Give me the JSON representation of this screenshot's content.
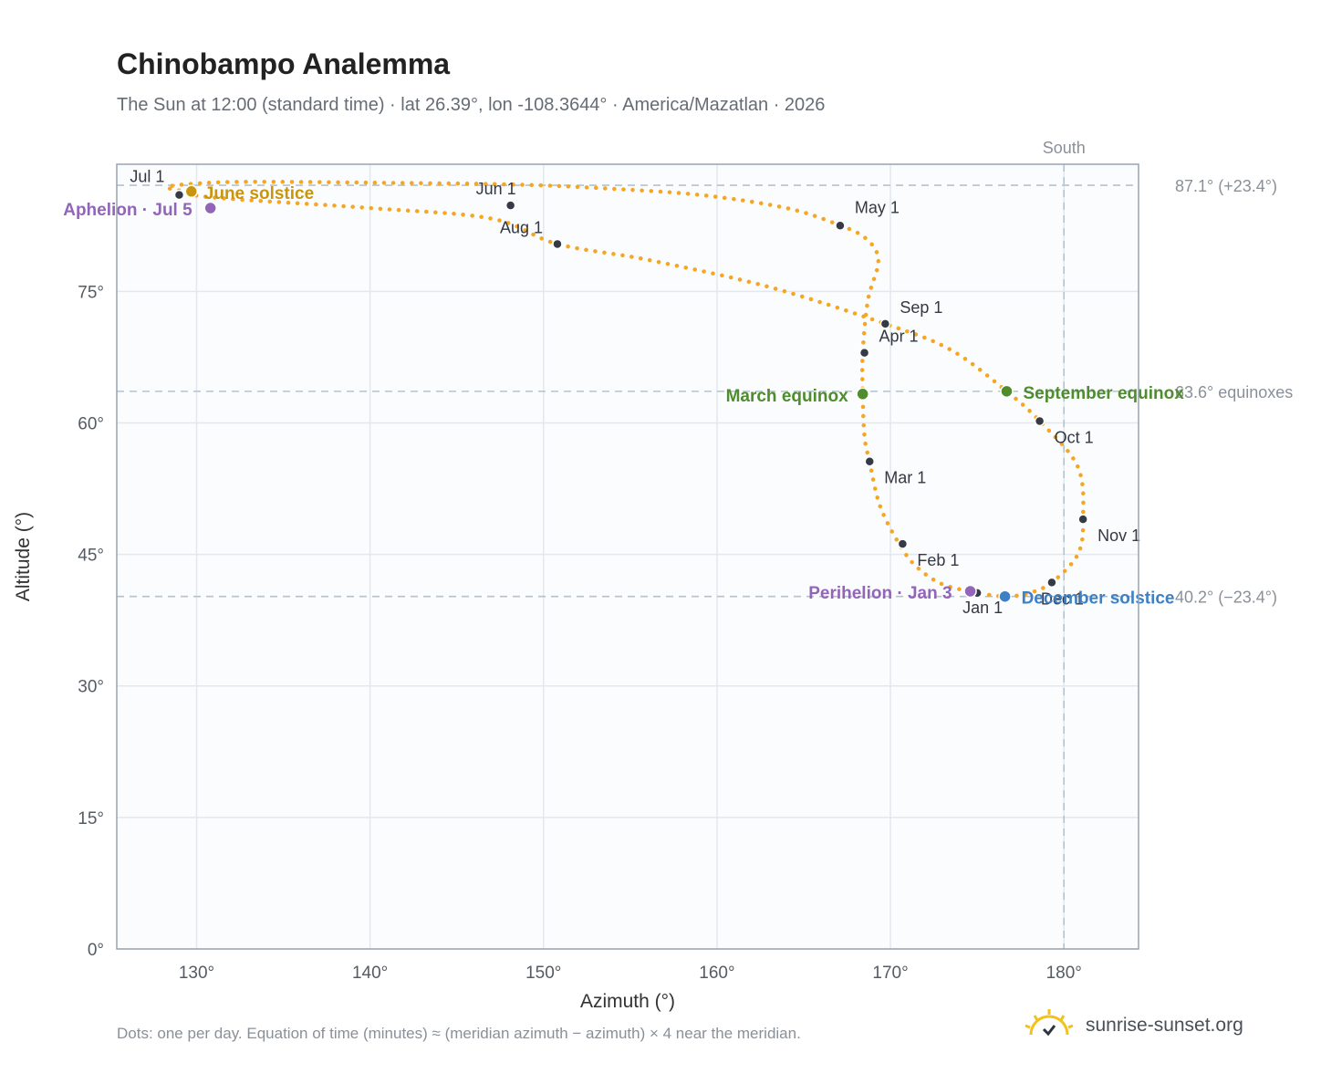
{
  "header": {
    "title": "Chinobampo Analemma",
    "subtitle": "The Sun at 12:00 (standard time) · lat 26.39°, lon -108.3644° · America/Mazatlan · 2026"
  },
  "footer": {
    "note": "Dots: one per day. Equation of time (minutes) ≈ (meridian azimuth − azimuth) × 4 near the meridian.",
    "brand": "sunrise-sunset.org"
  },
  "chart_data": {
    "type": "scatter",
    "title": "Chinobampo Analemma",
    "xlabel": "Azimuth (°)",
    "ylabel": "Altitude (°)",
    "xlim": [
      125.4,
      184.3
    ],
    "ylim": [
      0,
      89.5
    ],
    "x_ticks": [
      130,
      140,
      150,
      160,
      170,
      180
    ],
    "x_tick_labels": [
      "130°",
      "140°",
      "150°",
      "160°",
      "170°",
      "180°"
    ],
    "y_ticks": [
      0,
      15,
      30,
      45,
      60,
      75
    ],
    "y_tick_labels": [
      "0°",
      "15°",
      "30°",
      "45°",
      "60°",
      "75°"
    ],
    "grid": true,
    "colors": {
      "path": "#f5a623",
      "month_marker": "#343a46",
      "june_solstice": "#c9950f",
      "equinox": "#4e8c2e",
      "december_solstice": "#3f7fc4",
      "apsis": "#9365b8",
      "reference_line": "#b4c2cc",
      "plot_bg": "#fafcfe",
      "frame": "#98a4b2"
    },
    "reference_lines": [
      {
        "axis": "y",
        "value": 87.1,
        "label": "87.1° (+23.4°)"
      },
      {
        "axis": "y",
        "value": 63.6,
        "label": "63.6° equinoxes"
      },
      {
        "axis": "y",
        "value": 40.2,
        "label": "40.2° (−23.4°)"
      },
      {
        "axis": "x",
        "value": 180,
        "label": "South"
      }
    ],
    "path_points": [
      [
        175.0,
        40.6
      ],
      [
        173.0,
        41.6
      ],
      [
        171.5,
        43.6
      ],
      [
        170.5,
        46.2
      ],
      [
        169.4,
        50.5
      ],
      [
        168.8,
        55.5
      ],
      [
        168.5,
        58.5
      ],
      [
        168.4,
        63.3
      ],
      [
        168.4,
        68.0
      ],
      [
        168.7,
        74.0
      ],
      [
        169.3,
        78.5
      ],
      [
        168.6,
        81.0
      ],
      [
        167.0,
        82.6
      ],
      [
        164.0,
        84.5
      ],
      [
        159.0,
        86.0
      ],
      [
        153.0,
        86.8
      ],
      [
        148.0,
        87.2
      ],
      [
        140.0,
        87.4
      ],
      [
        133.0,
        87.5
      ],
      [
        130.0,
        87.3
      ],
      [
        128.3,
        86.9
      ],
      [
        129.3,
        86.4
      ],
      [
        131.0,
        85.7
      ],
      [
        140.0,
        84.5
      ],
      [
        147.0,
        83.3
      ],
      [
        150.8,
        80.4
      ],
      [
        156.0,
        78.6
      ],
      [
        163.0,
        75.5
      ],
      [
        169.7,
        71.3
      ],
      [
        173.5,
        68.3
      ],
      [
        176.7,
        63.6
      ],
      [
        178.6,
        60.2
      ],
      [
        180.8,
        55.0
      ],
      [
        181.1,
        49.0
      ],
      [
        180.8,
        45.0
      ],
      [
        179.3,
        41.8
      ],
      [
        178.0,
        40.6
      ],
      [
        176.6,
        40.2
      ],
      [
        175.0,
        40.6
      ]
    ],
    "months": [
      {
        "label": "Jan 1",
        "x": 175.0,
        "y": 40.6
      },
      {
        "label": "Feb 1",
        "x": 170.7,
        "y": 46.2
      },
      {
        "label": "Mar 1",
        "x": 168.8,
        "y": 55.6
      },
      {
        "label": "Apr 1",
        "x": 168.5,
        "y": 68.0
      },
      {
        "label": "May 1",
        "x": 167.1,
        "y": 82.5
      },
      {
        "label": "Jun 1",
        "x": 148.1,
        "y": 84.8
      },
      {
        "label": "Jul 1",
        "x": 129.0,
        "y": 86.0
      },
      {
        "label": "Aug 1",
        "x": 150.8,
        "y": 80.4
      },
      {
        "label": "Sep 1",
        "x": 169.7,
        "y": 71.3
      },
      {
        "label": "Oct 1",
        "x": 178.6,
        "y": 60.2
      },
      {
        "label": "Nov 1",
        "x": 181.1,
        "y": 49.0
      },
      {
        "label": "Dec 1",
        "x": 179.3,
        "y": 41.8
      }
    ],
    "events": [
      {
        "label": "June solstice",
        "x": 129.7,
        "y": 86.4,
        "color_key": "june_solstice"
      },
      {
        "label": "Aphelion · Jul 5",
        "x": 130.8,
        "y": 84.5,
        "color_key": "apsis"
      },
      {
        "label": "March equinox",
        "x": 168.4,
        "y": 63.3,
        "color_key": "equinox"
      },
      {
        "label": "September equinox",
        "x": 176.7,
        "y": 63.6,
        "color_key": "equinox"
      },
      {
        "label": "Perihelion · Jan 3",
        "x": 174.6,
        "y": 40.8,
        "color_key": "apsis"
      },
      {
        "label": "December solstice",
        "x": 176.6,
        "y": 40.2,
        "color_key": "december_solstice"
      }
    ]
  }
}
